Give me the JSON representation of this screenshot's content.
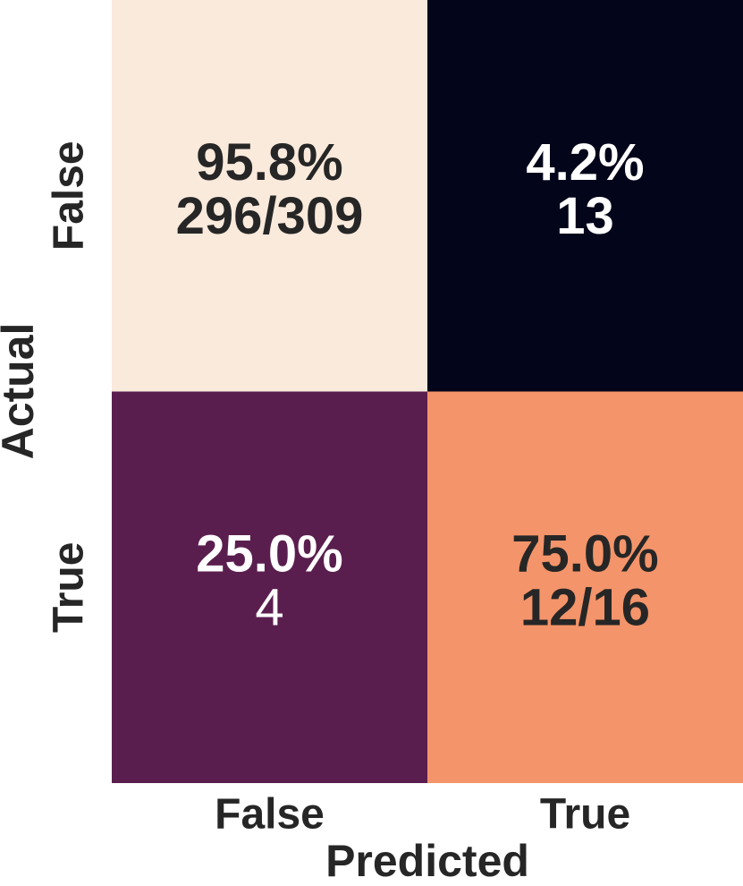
{
  "chart_data": {
    "type": "heatmap",
    "xlabel": "Predicted",
    "ylabel": "Actual",
    "x_categories": [
      "False",
      "True"
    ],
    "y_categories": [
      "False",
      "True"
    ],
    "values": [
      [
        95.8,
        4.2
      ],
      [
        25.0,
        75.0
      ]
    ],
    "value_labels": [
      [
        "95.8%",
        "4.2%"
      ],
      [
        "25.0%",
        "75.0%"
      ]
    ],
    "count_labels": [
      [
        "296/309",
        "13"
      ],
      [
        "4",
        "12/16"
      ]
    ],
    "colors": [
      [
        "#faeadc",
        "#03051a"
      ],
      [
        "#5a1e4e",
        "#f4946a"
      ]
    ]
  }
}
